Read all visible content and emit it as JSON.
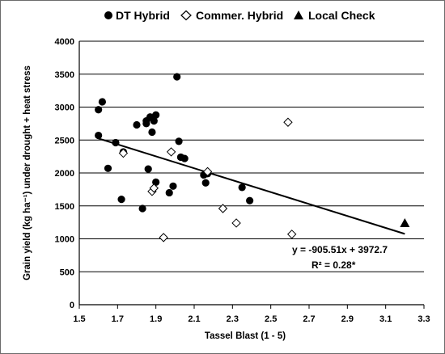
{
  "chart_data": {
    "type": "scatter",
    "xlabel": "Tassel Blast (1 - 5)",
    "ylabel": "Grain yield (kg ha⁻¹) under drought + heat stress",
    "xlim": [
      1.5,
      3.3
    ],
    "ylim": [
      0,
      4000
    ],
    "x_ticks": [
      "1.5",
      "1.7",
      "1.9",
      "2.1",
      "2.3",
      "2.5",
      "2.7",
      "2.9",
      "3.1",
      "3.3"
    ],
    "y_ticks": [
      "0",
      "500",
      "1000",
      "1500",
      "2000",
      "2500",
      "3000",
      "3500",
      "4000"
    ],
    "grid": "horizontal",
    "legend_position": "top",
    "series": [
      {
        "name": "DT Hybrid",
        "marker": "filled-circle",
        "color": "#000000",
        "points": [
          [
            1.6,
            2570
          ],
          [
            1.6,
            2960
          ],
          [
            1.62,
            3080
          ],
          [
            1.65,
            2070
          ],
          [
            1.69,
            2460
          ],
          [
            1.72,
            1600
          ],
          [
            1.73,
            2320
          ],
          [
            1.8,
            2730
          ],
          [
            1.83,
            1460
          ],
          [
            1.85,
            2790
          ],
          [
            1.85,
            2750
          ],
          [
            1.86,
            2060
          ],
          [
            1.87,
            2850
          ],
          [
            1.88,
            2620
          ],
          [
            1.89,
            2790
          ],
          [
            1.9,
            2880
          ],
          [
            1.9,
            1860
          ],
          [
            1.97,
            1700
          ],
          [
            1.99,
            1800
          ],
          [
            2.01,
            3460
          ],
          [
            2.02,
            2480
          ],
          [
            2.03,
            2240
          ],
          [
            2.05,
            2220
          ],
          [
            2.15,
            1970
          ],
          [
            2.16,
            1850
          ],
          [
            2.17,
            1990
          ],
          [
            2.35,
            1780
          ],
          [
            2.39,
            1580
          ]
        ]
      },
      {
        "name": "Commer. Hybrid",
        "marker": "open-diamond",
        "color": "#000000",
        "points": [
          [
            1.73,
            2300
          ],
          [
            1.88,
            1720
          ],
          [
            1.89,
            1770
          ],
          [
            1.94,
            1020
          ],
          [
            1.98,
            2320
          ],
          [
            2.17,
            2020
          ],
          [
            2.25,
            1460
          ],
          [
            2.32,
            1240
          ],
          [
            2.59,
            2770
          ],
          [
            2.61,
            1070
          ]
        ]
      },
      {
        "name": "Local Check",
        "marker": "filled-triangle",
        "color": "#000000",
        "points": [
          [
            3.2,
            1240
          ]
        ]
      }
    ],
    "trendline": {
      "slope": -905.51,
      "intercept": 3972.7,
      "x_range": [
        1.6,
        3.2
      ]
    },
    "annotations": [
      "y = -905.51x + 3972.7",
      "R² = 0.28*"
    ]
  }
}
